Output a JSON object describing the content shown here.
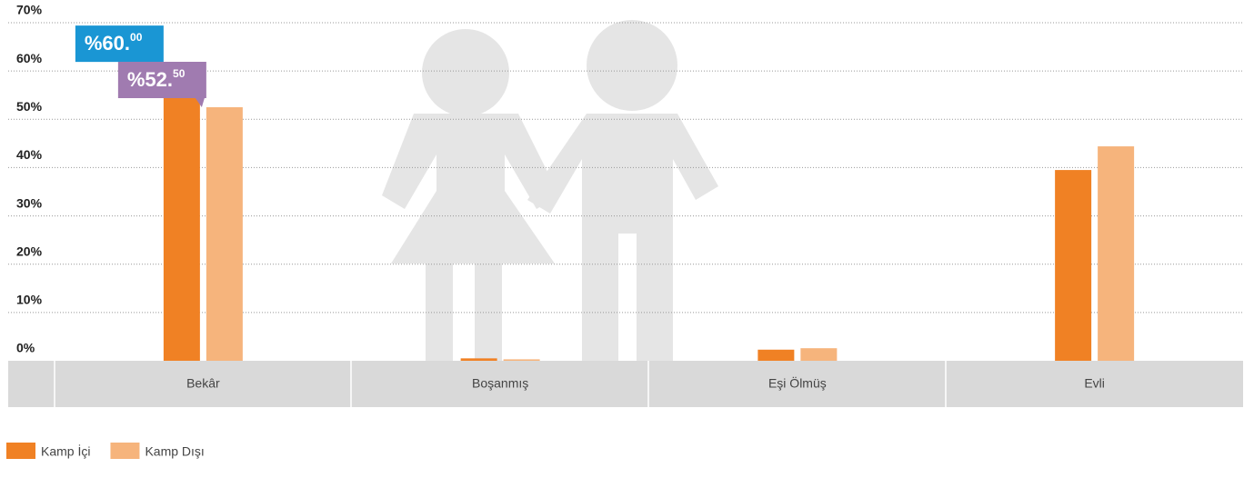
{
  "chart_data": {
    "type": "bar",
    "categories": [
      "Bekâr",
      "Boşanmış",
      "Eşi Ölmüş",
      "Evli"
    ],
    "series": [
      {
        "name": "Kamp İçi",
        "color": "#f08124",
        "values": [
          60,
          0.5,
          2.3,
          39.5
        ],
        "value_labels": [
          "%60.00",
          null,
          null,
          null
        ],
        "label_color": "#1a96d4"
      },
      {
        "name": "Kamp Dışı",
        "color": "#f6b47c",
        "values": [
          52.5,
          0.3,
          2.6,
          44.4
        ],
        "value_labels": [
          "%52.50",
          null,
          null,
          null
        ],
        "label_color": "#a07bb0"
      }
    ],
    "ylim": [
      0,
      70
    ],
    "yticks": [
      {
        "value": 0,
        "label": "0%"
      },
      {
        "value": 10,
        "label": "10%"
      },
      {
        "value": 20,
        "label": "20%"
      },
      {
        "value": 30,
        "label": "30%"
      },
      {
        "value": 40,
        "label": "40%"
      },
      {
        "value": 50,
        "label": "50%"
      },
      {
        "value": 60,
        "label": "60%"
      },
      {
        "value": 70,
        "label": "70%"
      }
    ],
    "grid": true
  }
}
